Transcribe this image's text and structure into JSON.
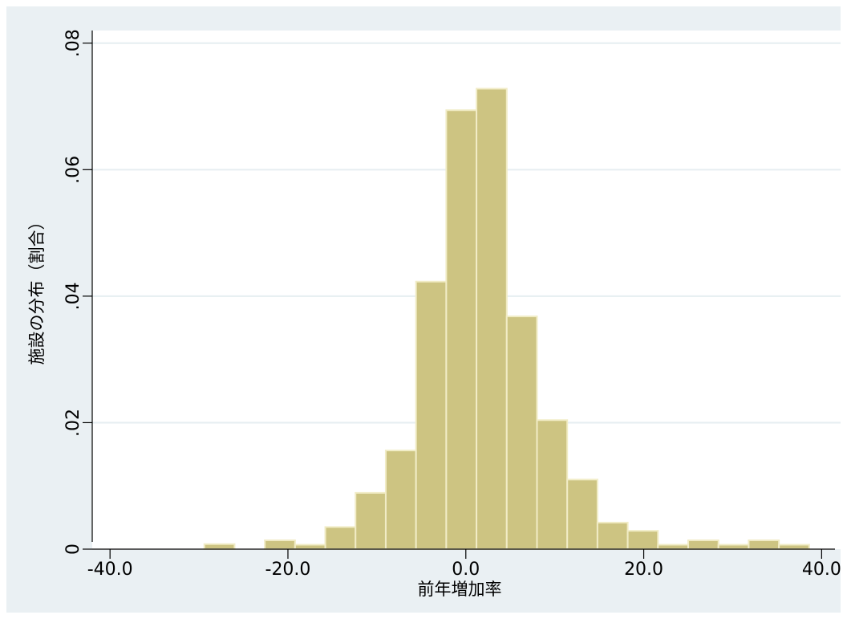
{
  "chart_data": {
    "type": "histogram",
    "xlabel": "前年増加率",
    "ylabel": "施設の分布（割合）",
    "xlim": [
      -42.0,
      41.5
    ],
    "ylim": [
      0,
      0.082
    ],
    "x_ticks": [
      -40,
      -20,
      0,
      20,
      40
    ],
    "x_tick_labels": [
      "-40.0",
      "-20.0",
      "0.0",
      "20.0",
      "40.0"
    ],
    "y_ticks": [
      0,
      0.02,
      0.04,
      0.06,
      0.08
    ],
    "y_tick_labels": [
      "0",
      ".02",
      ".04",
      ".06",
      ".08"
    ],
    "grid": true,
    "bar_color": "#cdc482",
    "bar_edge_color": "#f1ecc6",
    "bins": [
      {
        "x0": -29.4,
        "x1": -26.0,
        "value": 0.0008
      },
      {
        "x0": -26.0,
        "x1": -22.6,
        "value": 0.0
      },
      {
        "x0": -22.6,
        "x1": -19.2,
        "value": 0.0014
      },
      {
        "x0": -19.2,
        "x1": -15.8,
        "value": 0.0007
      },
      {
        "x0": -15.8,
        "x1": -12.4,
        "value": 0.0035
      },
      {
        "x0": -12.4,
        "x1": -9.0,
        "value": 0.0089
      },
      {
        "x0": -9.0,
        "x1": -5.6,
        "value": 0.0156
      },
      {
        "x0": -5.6,
        "x1": -2.2,
        "value": 0.0423
      },
      {
        "x0": -2.2,
        "x1": 1.2,
        "value": 0.0694
      },
      {
        "x0": 1.2,
        "x1": 4.6,
        "value": 0.0728
      },
      {
        "x0": 4.6,
        "x1": 8.0,
        "value": 0.0368
      },
      {
        "x0": 8.0,
        "x1": 11.4,
        "value": 0.0204
      },
      {
        "x0": 11.4,
        "x1": 14.8,
        "value": 0.011
      },
      {
        "x0": 14.8,
        "x1": 18.2,
        "value": 0.0042
      },
      {
        "x0": 18.2,
        "x1": 21.6,
        "value": 0.0029
      },
      {
        "x0": 21.6,
        "x1": 25.0,
        "value": 0.0007
      },
      {
        "x0": 25.0,
        "x1": 28.4,
        "value": 0.0014
      },
      {
        "x0": 28.4,
        "x1": 31.8,
        "value": 0.0007
      },
      {
        "x0": 31.8,
        "x1": 35.2,
        "value": 0.0014
      },
      {
        "x0": 35.2,
        "x1": 38.6,
        "value": 0.0007
      }
    ]
  }
}
